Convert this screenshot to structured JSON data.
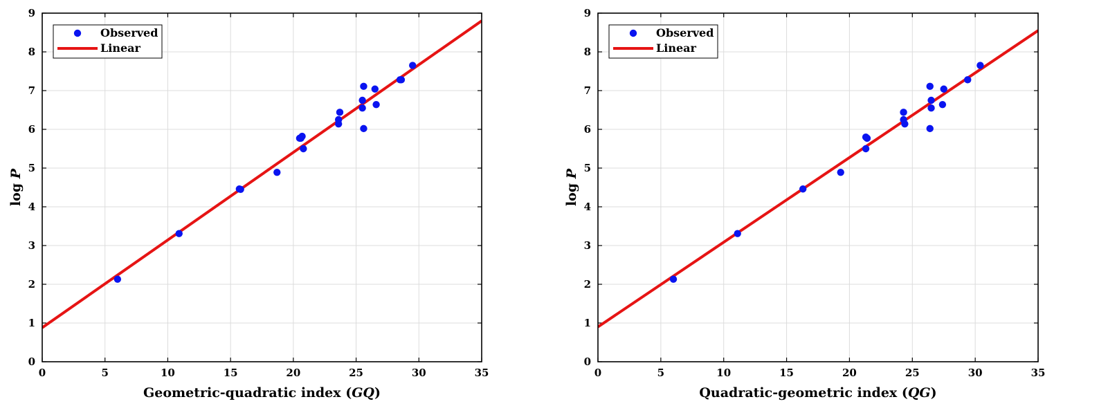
{
  "chart_data": [
    {
      "type": "scatter",
      "xlabel": "Geometric-quadratic index (GQ)",
      "xlabel_parts": {
        "text": "Geometric-quadratic index (",
        "symbol": "GQ",
        "close": ")"
      },
      "ylabel": "log P",
      "ylabel_parts": {
        "text": "log",
        "symbol": "P"
      },
      "xlim": [
        0,
        35
      ],
      "ylim": [
        0,
        9
      ],
      "xticks": [
        0,
        5,
        10,
        15,
        20,
        25,
        30,
        35
      ],
      "yticks": [
        0,
        1,
        2,
        3,
        4,
        5,
        6,
        7,
        8,
        9
      ],
      "grid": true,
      "legend_position": "top-left",
      "series": [
        {
          "name": "Observed",
          "kind": "scatter",
          "color": "#0a14f0",
          "x": [
            6.0,
            10.9,
            15.7,
            15.8,
            18.7,
            20.5,
            20.7,
            20.6,
            20.8,
            23.6,
            23.6,
            23.7,
            25.5,
            25.5,
            25.6,
            25.6,
            26.5,
            26.6,
            28.5,
            28.6,
            29.5
          ],
          "y": [
            2.13,
            3.31,
            4.46,
            4.45,
            4.89,
            5.77,
            5.82,
            5.77,
            5.5,
            6.14,
            6.25,
            6.44,
            6.75,
            6.55,
            7.11,
            6.02,
            7.04,
            6.64,
            7.28,
            7.28,
            7.65
          ]
        },
        {
          "name": "Linear",
          "kind": "line",
          "color": "#e61414",
          "x": [
            0,
            35
          ],
          "y": [
            0.88,
            8.8
          ]
        }
      ]
    },
    {
      "type": "scatter",
      "xlabel": "Quadratic-geometric index (QG)",
      "xlabel_parts": {
        "text": "Quadratic-geometric index (",
        "symbol": "QG",
        "close": ")"
      },
      "ylabel": "log P",
      "ylabel_parts": {
        "text": "log",
        "symbol": "P"
      },
      "xlim": [
        0,
        35
      ],
      "ylim": [
        0,
        9
      ],
      "xticks": [
        0,
        5,
        10,
        15,
        20,
        25,
        30,
        35
      ],
      "yticks": [
        0,
        1,
        2,
        3,
        4,
        5,
        6,
        7,
        8,
        9
      ],
      "grid": true,
      "legend_position": "top-left",
      "series": [
        {
          "name": "Observed",
          "kind": "scatter",
          "color": "#0a14f0",
          "x": [
            6.0,
            11.1,
            16.3,
            19.3,
            21.3,
            21.4,
            21.4,
            21.3,
            24.3,
            24.3,
            24.4,
            26.4,
            26.4,
            26.5,
            26.5,
            27.4,
            27.5,
            29.4,
            30.4
          ],
          "y": [
            2.13,
            3.31,
            4.46,
            4.89,
            5.8,
            5.77,
            5.77,
            5.5,
            6.44,
            6.25,
            6.14,
            7.11,
            6.02,
            6.75,
            6.55,
            6.64,
            7.04,
            7.28,
            7.65
          ]
        },
        {
          "name": "Linear",
          "kind": "line",
          "color": "#e61414",
          "x": [
            0,
            35
          ],
          "y": [
            0.9,
            8.55
          ]
        }
      ]
    }
  ]
}
